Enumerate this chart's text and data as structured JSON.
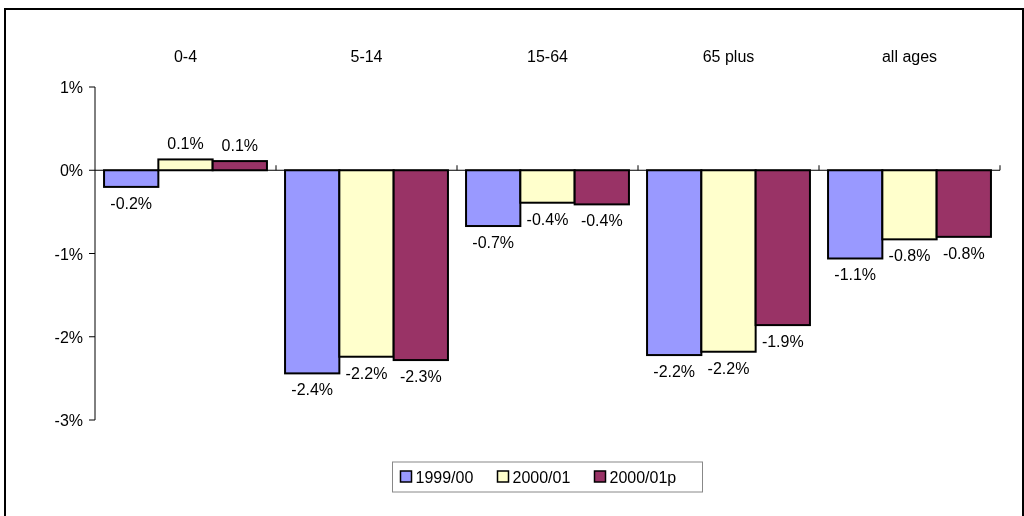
{
  "chart_data": {
    "type": "bar",
    "categories": [
      "0-4",
      "5-14",
      "15-64",
      "65 plus",
      "all ages"
    ],
    "series": [
      {
        "name": "1999/00",
        "color": "#9999ff",
        "values": [
          -0.2,
          -2.44,
          -0.67,
          -2.22,
          -1.06
        ],
        "value_labels": [
          "-0.2%",
          "-2.4%",
          "-0.7%",
          "-2.2%",
          "-1.1%"
        ]
      },
      {
        "name": "2000/01",
        "color": "#ffffcc",
        "values": [
          0.13,
          -2.24,
          -0.39,
          -2.18,
          -0.83
        ],
        "value_labels": [
          "0.1%",
          "-2.2%",
          "-0.4%",
          "-2.2%",
          "-0.8%"
        ]
      },
      {
        "name": "2000/01p",
        "color": "#993366",
        "values": [
          0.11,
          -2.28,
          -0.41,
          -1.86,
          -0.8
        ],
        "value_labels": [
          "0.1%",
          "-2.3%",
          "-0.4%",
          "-1.9%",
          "-0.8%"
        ]
      }
    ],
    "ylim": [
      -3,
      1
    ],
    "yticks": [
      {
        "value": 1,
        "label": "1%"
      },
      {
        "value": 0,
        "label": "0%"
      },
      {
        "value": -1,
        "label": "-1%"
      },
      {
        "value": -2,
        "label": "-2%"
      },
      {
        "value": -3,
        "label": "-3%"
      }
    ],
    "legend": "bottom"
  }
}
